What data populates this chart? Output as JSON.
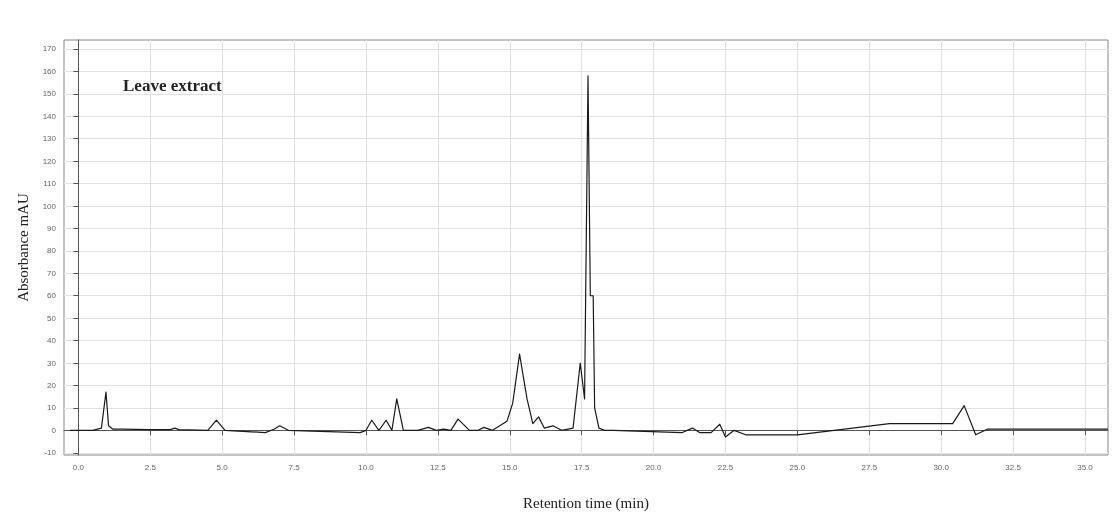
{
  "chart_data": {
    "type": "line",
    "title": "Leave extract",
    "xlabel": "Retention time (min)",
    "ylabel": "Absorbance mAU",
    "x": [
      -0.3,
      0.5,
      0.8,
      0.96,
      1.05,
      1.2,
      1.5,
      2.5,
      3.2,
      3.35,
      3.5,
      4.5,
      4.8,
      5.1,
      6.5,
      6.8,
      7.0,
      7.3,
      9.8,
      10.0,
      10.2,
      10.45,
      10.7,
      10.9,
      11.07,
      11.3,
      11.8,
      12.17,
      12.45,
      12.7,
      12.95,
      13.2,
      13.6,
      13.9,
      14.1,
      14.4,
      14.9,
      15.1,
      15.34,
      15.6,
      15.8,
      16.0,
      16.2,
      16.5,
      16.8,
      17.2,
      17.45,
      17.6,
      17.72,
      17.8,
      17.9,
      17.95,
      18.1,
      18.3,
      18.6,
      21.0,
      21.35,
      21.6,
      22.0,
      22.3,
      22.5,
      22.8,
      23.2,
      25.0,
      28.2,
      30.4,
      30.8,
      31.2,
      31.6,
      35.8
    ],
    "values": [
      0,
      0,
      1,
      17,
      2,
      0.5,
      0.5,
      0.3,
      0.3,
      1,
      0.3,
      0,
      4.5,
      0,
      -1,
      0.5,
      2,
      0,
      -1,
      0,
      4.5,
      0,
      4.5,
      0,
      14,
      0,
      0,
      1.3,
      0,
      0.5,
      0,
      5,
      0,
      0,
      1.3,
      0,
      4,
      12,
      34,
      14,
      3,
      6,
      1,
      2,
      0,
      1,
      30,
      14,
      158,
      60,
      60,
      10,
      1,
      0,
      0,
      -1,
      1,
      -1,
      -1,
      2.7,
      -3,
      0,
      -2,
      -2,
      3,
      3,
      11,
      -2,
      0.5,
      0.5
    ],
    "color": "#1a1a1a",
    "marker": "none",
    "line_style": "solid",
    "grid": true,
    "xlim": [
      -0.5,
      35.8
    ],
    "ylim": [
      -11,
      174
    ],
    "xticks": [
      {
        "value": 0,
        "label": "0.0"
      },
      {
        "value": 2.5,
        "label": "2.5"
      },
      {
        "value": 5,
        "label": "5.0"
      },
      {
        "value": 7.5,
        "label": "7.5"
      },
      {
        "value": 10,
        "label": "10.0"
      },
      {
        "value": 12.5,
        "label": "12.5"
      },
      {
        "value": 15,
        "label": "15.0"
      },
      {
        "value": 17.5,
        "label": "17.5"
      },
      {
        "value": 20,
        "label": "20.0"
      },
      {
        "value": 22.5,
        "label": "22.5"
      },
      {
        "value": 25,
        "label": "25.0"
      },
      {
        "value": 27.5,
        "label": "27.5"
      },
      {
        "value": 30,
        "label": "30.0"
      },
      {
        "value": 32.5,
        "label": "32.5"
      },
      {
        "value": 35,
        "label": "35.0"
      }
    ],
    "yticks": [
      -10,
      0,
      10,
      20,
      30,
      40,
      50,
      60,
      70,
      80,
      90,
      100,
      110,
      120,
      130,
      140,
      150,
      160,
      170
    ]
  }
}
